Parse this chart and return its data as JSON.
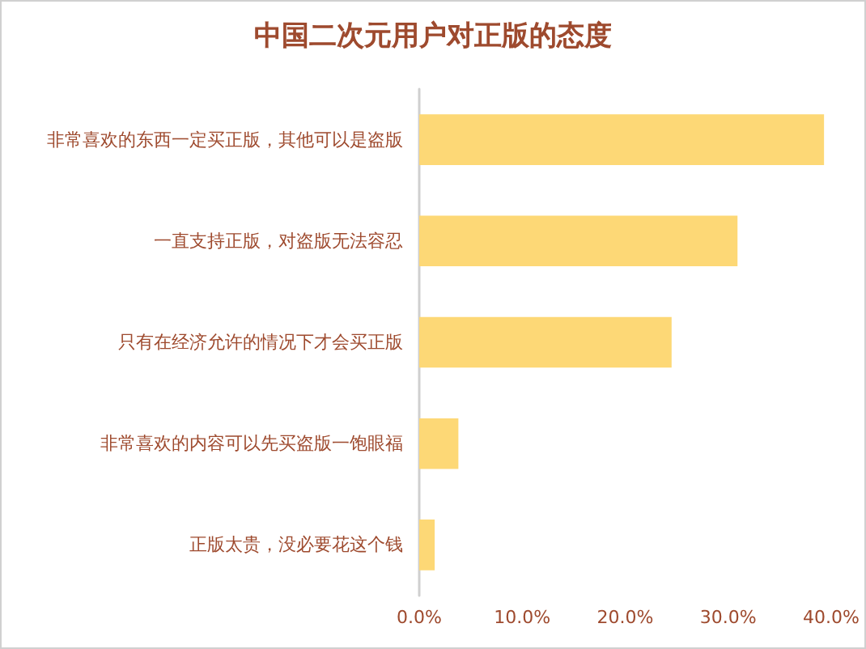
{
  "chart_data": {
    "type": "bar",
    "orientation": "horizontal",
    "title": "中国二次元用户对正版的态度",
    "categories": [
      "非常喜欢的东西一定买正版，其他可以是盗版",
      "一直支持正版，对盗版无法容忍",
      "只有在经济允许的情况下才会买正版",
      "非常喜欢的内容可以先买盗版一饱眼福",
      "正版太贵，没必要花这个钱"
    ],
    "values": [
      39.3,
      30.9,
      24.5,
      3.8,
      1.5
    ],
    "color": "#fdd876",
    "xlim": [
      0,
      40
    ],
    "xticks": [
      {
        "value": 0,
        "label": "0.0%"
      },
      {
        "value": 10,
        "label": "10.0%"
      },
      {
        "value": 20,
        "label": "20.0%"
      },
      {
        "value": 30,
        "label": "30.0%"
      },
      {
        "value": 40,
        "label": "40.0%"
      }
    ],
    "grid": false
  }
}
